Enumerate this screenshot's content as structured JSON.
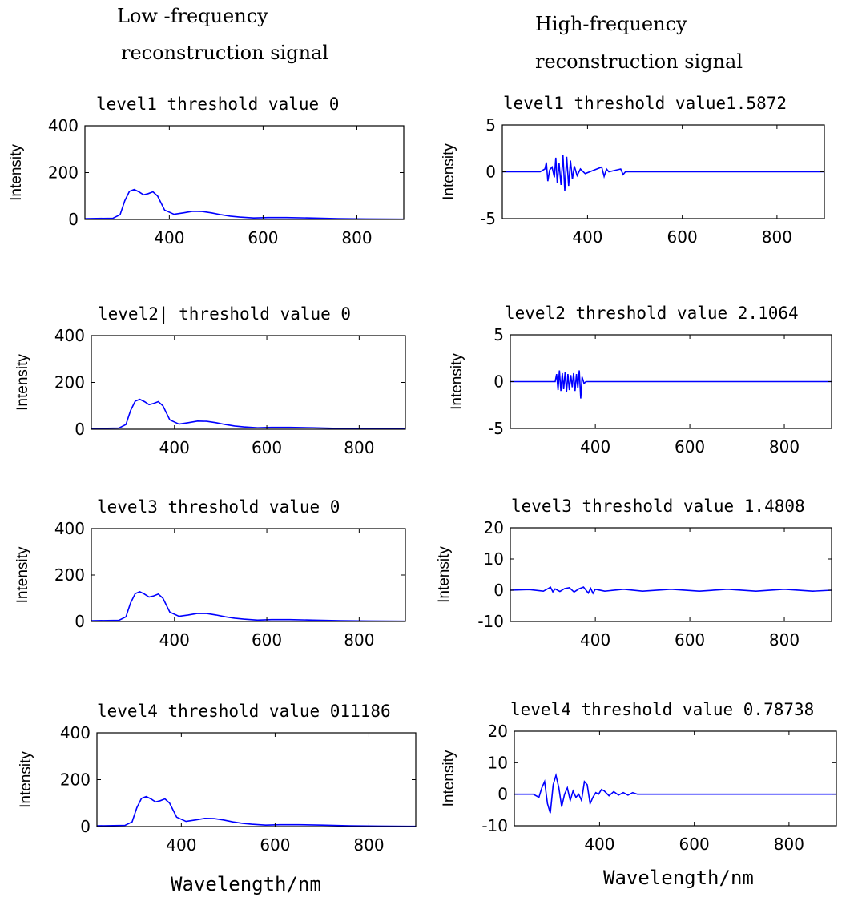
{
  "headings": {
    "left_line1": "Low -frequency",
    "left_line2": "reconstruction signal",
    "right_line1": "High-frequency",
    "right_line2": "reconstruction signal"
  },
  "x_label": "Wavelength/nm",
  "colors": {
    "line": "#0000ff",
    "axes": "#000000",
    "background": "#ffffff"
  },
  "chart_data": [
    {
      "type": "line",
      "title": "level1  threshold  value 0",
      "ylabel": "Intensity",
      "xlim": [
        220,
        900
      ],
      "ylim": [
        0,
        400
      ],
      "xticks": [
        400,
        600,
        800
      ],
      "yticks": [
        0,
        200,
        400
      ],
      "x": [
        220,
        280,
        295,
        305,
        315,
        325,
        335,
        345,
        355,
        365,
        375,
        390,
        410,
        430,
        450,
        470,
        490,
        510,
        530,
        550,
        580,
        610,
        650,
        700,
        760,
        820,
        900
      ],
      "y": [
        3,
        5,
        20,
        80,
        120,
        128,
        118,
        105,
        110,
        118,
        100,
        40,
        22,
        28,
        35,
        34,
        28,
        20,
        14,
        10,
        6,
        8,
        8,
        6,
        3,
        2,
        1
      ]
    },
    {
      "type": "line",
      "title": "level2| threshold  value 0",
      "ylabel": "Intensity",
      "xlim": [
        220,
        900
      ],
      "ylim": [
        0,
        400
      ],
      "xticks": [
        400,
        600,
        800
      ],
      "yticks": [
        0,
        200,
        400
      ],
      "x": [
        220,
        280,
        295,
        305,
        315,
        325,
        335,
        345,
        355,
        365,
        375,
        390,
        410,
        430,
        450,
        470,
        490,
        510,
        530,
        550,
        580,
        610,
        650,
        700,
        760,
        820,
        900
      ],
      "y": [
        3,
        5,
        20,
        80,
        120,
        128,
        118,
        105,
        110,
        118,
        100,
        40,
        22,
        28,
        35,
        34,
        28,
        20,
        14,
        10,
        6,
        8,
        8,
        6,
        3,
        2,
        1
      ]
    },
    {
      "type": "line",
      "title": "level3   threshold  value 0",
      "ylabel": "Intensity",
      "xlim": [
        220,
        900
      ],
      "ylim": [
        0,
        400
      ],
      "xticks": [
        400,
        600,
        800
      ],
      "yticks": [
        0,
        200,
        400
      ],
      "x": [
        220,
        280,
        295,
        305,
        315,
        325,
        335,
        345,
        355,
        365,
        375,
        390,
        410,
        430,
        450,
        470,
        490,
        510,
        530,
        550,
        580,
        610,
        650,
        700,
        760,
        820,
        900
      ],
      "y": [
        3,
        5,
        20,
        80,
        120,
        128,
        118,
        105,
        110,
        118,
        100,
        40,
        22,
        28,
        35,
        34,
        28,
        20,
        14,
        10,
        6,
        8,
        8,
        6,
        3,
        2,
        1
      ]
    },
    {
      "type": "line",
      "title": "level4 threshold  value 011186",
      "ylabel": "Intensity",
      "xlim": [
        220,
        900
      ],
      "ylim": [
        0,
        400
      ],
      "xticks": [
        400,
        600,
        800
      ],
      "yticks": [
        0,
        200,
        400
      ],
      "x": [
        220,
        280,
        295,
        305,
        315,
        325,
        335,
        345,
        355,
        365,
        375,
        390,
        410,
        430,
        450,
        470,
        490,
        510,
        530,
        550,
        580,
        610,
        650,
        700,
        760,
        820,
        900
      ],
      "y": [
        3,
        5,
        20,
        80,
        120,
        128,
        118,
        105,
        110,
        118,
        100,
        40,
        22,
        28,
        35,
        34,
        28,
        20,
        14,
        10,
        6,
        8,
        8,
        6,
        3,
        2,
        1
      ]
    },
    {
      "type": "line",
      "title": "level1 threshold  value1.5872",
      "ylabel": "Intensity",
      "xlim": [
        220,
        900
      ],
      "ylim": [
        -5,
        5
      ],
      "xticks": [
        400,
        600,
        800
      ],
      "yticks": [
        -5,
        0,
        5
      ],
      "x": [
        220,
        300,
        310,
        313,
        316,
        320,
        325,
        330,
        333,
        336,
        340,
        344,
        348,
        352,
        356,
        360,
        364,
        368,
        372,
        378,
        385,
        395,
        410,
        430,
        435,
        440,
        445,
        470,
        475,
        480,
        490,
        600,
        700,
        800,
        900
      ],
      "y": [
        0,
        0,
        0.3,
        1,
        -1,
        0.2,
        0.5,
        -0.6,
        1.5,
        -1.2,
        0.9,
        -1.4,
        1.8,
        -2,
        1.6,
        -1.5,
        1.2,
        -0.8,
        0.6,
        -0.4,
        0.3,
        -0.2,
        0.1,
        0.5,
        -0.5,
        0.3,
        0,
        0.3,
        -0.3,
        0,
        0,
        0,
        0,
        0,
        0
      ]
    },
    {
      "type": "line",
      "title": "level2 threshold  value 2.1064",
      "ylabel": "Intensity",
      "xlim": [
        220,
        900
      ],
      "ylim": [
        -5,
        5
      ],
      "xticks": [
        400,
        600,
        800
      ],
      "yticks": [
        -5,
        0,
        5
      ],
      "x": [
        220,
        315,
        318,
        321,
        324,
        327,
        330,
        333,
        336,
        339,
        342,
        345,
        348,
        351,
        354,
        357,
        360,
        363,
        366,
        369,
        372,
        376,
        380,
        500,
        700,
        900
      ],
      "y": [
        0,
        0,
        0.8,
        -0.9,
        1.2,
        -1,
        0.9,
        -0.8,
        1,
        -1.1,
        0.8,
        -0.9,
        0.7,
        -0.6,
        0.9,
        -1,
        0.8,
        -0.7,
        1.2,
        -1.8,
        0.5,
        -0.2,
        0,
        0,
        0,
        0
      ]
    },
    {
      "type": "line",
      "title": "level3 threshold  value 1.4808",
      "ylabel": "Intensity",
      "xlim": [
        220,
        900
      ],
      "ylim": [
        -10,
        20
      ],
      "xticks": [
        400,
        600,
        800
      ],
      "yticks": [
        -10,
        0,
        10,
        20
      ],
      "x": [
        220,
        260,
        290,
        300,
        305,
        310,
        315,
        325,
        335,
        345,
        355,
        365,
        375,
        385,
        390,
        395,
        400,
        420,
        460,
        500,
        560,
        620,
        680,
        740,
        800,
        860,
        900
      ],
      "y": [
        0,
        0.2,
        -0.3,
        0.5,
        1,
        -0.5,
        0.4,
        -0.4,
        0.5,
        0.8,
        -0.6,
        0.4,
        1,
        -0.9,
        0.6,
        -1,
        0.3,
        -0.3,
        0.3,
        -0.3,
        0.3,
        -0.3,
        0.3,
        -0.3,
        0.3,
        -0.3,
        0
      ]
    },
    {
      "type": "line",
      "title": "level4 threshold  value 0.78738",
      "ylabel": "Intensity",
      "xlim": [
        220,
        900
      ],
      "ylim": [
        -10,
        20
      ],
      "xticks": [
        400,
        600,
        800
      ],
      "yticks": [
        -10,
        0,
        10,
        20
      ],
      "x": [
        220,
        260,
        272,
        278,
        284,
        290,
        296,
        302,
        308,
        314,
        320,
        326,
        332,
        338,
        344,
        350,
        356,
        362,
        368,
        374,
        380,
        386,
        392,
        398,
        404,
        410,
        420,
        430,
        440,
        450,
        460,
        470,
        480,
        600,
        700,
        800,
        900
      ],
      "y": [
        0,
        0,
        -1,
        2,
        4,
        -3,
        -6,
        3,
        6,
        2,
        -4,
        0,
        2,
        -2,
        1,
        -1,
        0,
        -2,
        4,
        3,
        -3,
        -1,
        0.5,
        0,
        1.5,
        1,
        -0.5,
        0.8,
        -0.3,
        0.5,
        -0.3,
        0.5,
        0,
        0,
        0,
        0,
        0
      ]
    }
  ]
}
